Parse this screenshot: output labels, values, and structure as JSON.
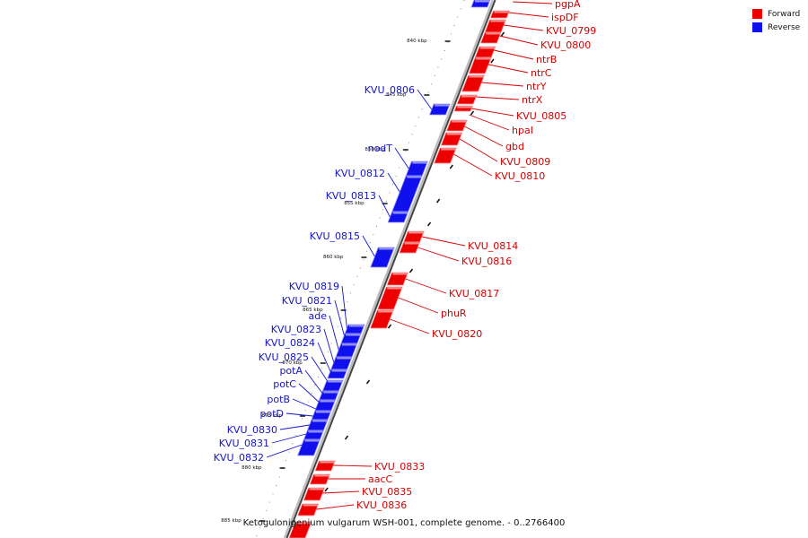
{
  "legend": {
    "forward": {
      "label": "Forward",
      "color": "#ee0000"
    },
    "reverse": {
      "label": "Reverse",
      "color": "#1010ee"
    }
  },
  "caption": "Ketogulonigenium vulgarum WSH-001, complete genome. - 0..2766400",
  "kbp_labels": [
    "840 kbp",
    "845 kbp",
    "850 kbp",
    "855 kbp",
    "860 kbp",
    "865 kbp",
    "870 kbp",
    "875 kbp",
    "880 kbp",
    "885 kbp"
  ],
  "genes": {
    "forward": [
      "pgpA",
      "ispDF",
      "KVU_0799",
      "KVU_0800",
      "ntrB",
      "ntrC",
      "ntrY",
      "ntrX",
      "KVU_0805",
      "hpaI",
      "gbd",
      "KVU_0809",
      "KVU_0810",
      "KVU_0814",
      "KVU_0816",
      "KVU_0817",
      "phuR",
      "KVU_0820",
      "KVU_0833",
      "aacC",
      "KVU_0835",
      "KVU_0836"
    ],
    "reverse": [
      "KVU_0806",
      "nodT",
      "KVU_0812",
      "KVU_0813",
      "KVU_0815",
      "KVU_0819",
      "KVU_0821",
      "ade",
      "KVU_0823",
      "KVU_0824",
      "KVU_0825",
      "potA",
      "potC",
      "potB",
      "potD",
      "KVU_0830",
      "KVU_0831",
      "KVU_0832"
    ]
  }
}
